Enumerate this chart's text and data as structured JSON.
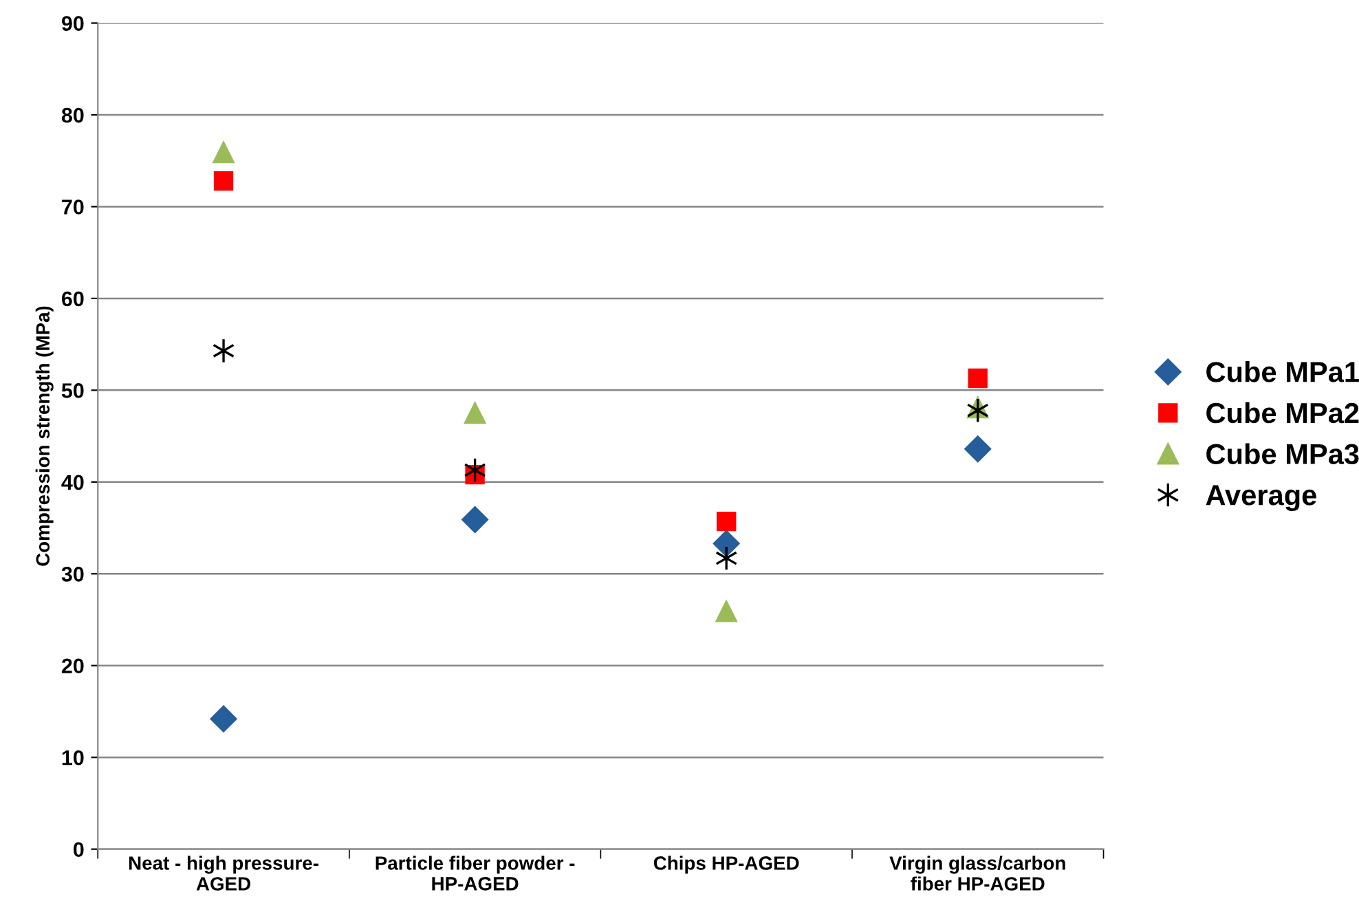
{
  "chart_data": {
    "type": "scatter",
    "ylabel": "Compression strength (MPa)",
    "categories": [
      "Neat - high pressure-\nAGED",
      "Particle fiber powder -\nHP-AGED",
      "Chips HP-AGED",
      "Virgin glass/carbon\nfiber HP-AGED"
    ],
    "series": [
      {
        "name": "Cube MPa1",
        "color": "#265d9b",
        "marker": "diamond",
        "values": [
          14.2,
          35.9,
          33.3,
          43.6
        ]
      },
      {
        "name": "Cube MPa2",
        "color": "#ff0000",
        "marker": "square",
        "values": [
          72.8,
          40.8,
          35.7,
          51.3
        ]
      },
      {
        "name": "Cube MPa3",
        "color": "#9bbb59",
        "marker": "triangle",
        "values": [
          75.9,
          47.5,
          25.9,
          48.1
        ]
      },
      {
        "name": "Average",
        "color": "#000000",
        "marker": "cross",
        "values": [
          54.3,
          41.3,
          31.7,
          47.8
        ]
      }
    ],
    "ylim": [
      0,
      90
    ],
    "yticks": [
      0,
      10,
      20,
      30,
      40,
      50,
      60,
      70,
      80,
      90
    ],
    "grid": "y",
    "legend": "right"
  }
}
